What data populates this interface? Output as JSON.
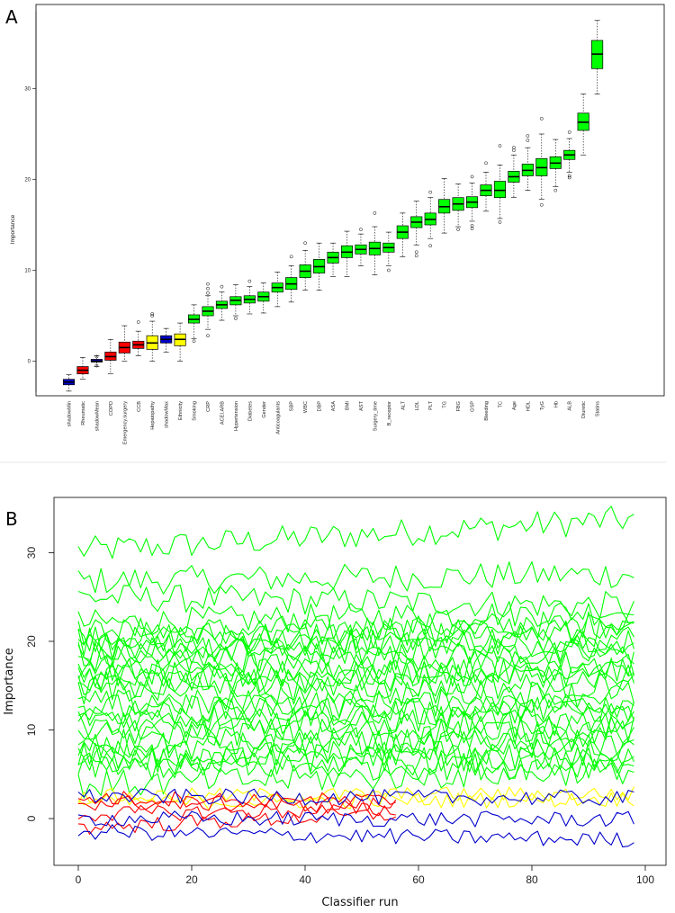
{
  "panels": {
    "a_label": "A",
    "b_label": "B"
  },
  "chart_data": [
    {
      "type": "box",
      "ylabel": "Importance",
      "ylim": [
        -3.4,
        38.5
      ],
      "yticks": [
        0,
        10,
        20,
        30
      ],
      "grid": false,
      "colors": {
        "shadow": "#0000cc",
        "rejected": "#ff0000",
        "tentative": "#ffff00",
        "confirmed": "#00ff00"
      },
      "boxes": [
        {
          "name": "shadowMin",
          "status": "shadow",
          "min": -3.3,
          "q1": -2.6,
          "median": -2.3,
          "q3": -2.0,
          "max": -1.5,
          "outliers": []
        },
        {
          "name": "Rheumatic",
          "status": "rejected",
          "min": -2.0,
          "q1": -1.4,
          "median": -1.0,
          "q3": -0.6,
          "max": 0.4,
          "outliers": []
        },
        {
          "name": "shadowMean",
          "status": "shadow",
          "min": -0.6,
          "q1": -0.1,
          "median": 0.0,
          "q3": 0.2,
          "max": 0.6,
          "outliers": [
            0.5,
            -0.5
          ]
        },
        {
          "name": "COPD",
          "status": "rejected",
          "min": -1.4,
          "q1": 0.1,
          "median": 0.5,
          "q3": 1.0,
          "max": 2.4,
          "outliers": []
        },
        {
          "name": "Emergency.surgery",
          "status": "rejected",
          "min": 0.0,
          "q1": 0.9,
          "median": 1.5,
          "q3": 2.1,
          "max": 3.9,
          "outliers": []
        },
        {
          "name": "CCB",
          "status": "rejected",
          "min": 0.6,
          "q1": 1.4,
          "median": 1.8,
          "q3": 2.2,
          "max": 3.3,
          "outliers": [
            4.3
          ]
        },
        {
          "name": "Hepatopathy",
          "status": "tentative",
          "min": 0.0,
          "q1": 1.3,
          "median": 2.0,
          "q3": 2.8,
          "max": 4.4,
          "outliers": [
            5.0,
            5.2
          ]
        },
        {
          "name": "shadowMax",
          "status": "shadow",
          "min": 1.0,
          "q1": 2.0,
          "median": 2.4,
          "q3": 2.8,
          "max": 3.6,
          "outliers": []
        },
        {
          "name": "Ethnicity",
          "status": "tentative",
          "min": 0.0,
          "q1": 1.7,
          "median": 2.4,
          "q3": 3.0,
          "max": 4.2,
          "outliers": []
        },
        {
          "name": "Smoking",
          "status": "confirmed",
          "min": 2.5,
          "q1": 4.2,
          "median": 4.6,
          "q3": 5.1,
          "max": 6.2,
          "outliers": [
            2.2
          ]
        },
        {
          "name": "CRP",
          "status": "confirmed",
          "min": 3.5,
          "q1": 5.0,
          "median": 5.5,
          "q3": 6.0,
          "max": 7.2,
          "outliers": [
            8.0,
            8.5,
            7.5,
            2.8
          ]
        },
        {
          "name": "ACEI.ARB",
          "status": "confirmed",
          "min": 4.5,
          "q1": 5.8,
          "median": 6.2,
          "q3": 6.6,
          "max": 7.6,
          "outliers": [
            8.2
          ]
        },
        {
          "name": "Hypertension",
          "status": "confirmed",
          "min": 5.0,
          "q1": 6.2,
          "median": 6.7,
          "q3": 7.1,
          "max": 8.4,
          "outliers": [
            4.7
          ]
        },
        {
          "name": "Diabetes",
          "status": "confirmed",
          "min": 5.2,
          "q1": 6.4,
          "median": 6.8,
          "q3": 7.2,
          "max": 8.2,
          "outliers": [
            8.8
          ]
        },
        {
          "name": "Gender",
          "status": "confirmed",
          "min": 5.3,
          "q1": 6.6,
          "median": 7.1,
          "q3": 7.6,
          "max": 8.6,
          "outliers": []
        },
        {
          "name": "Anticoagulants",
          "status": "confirmed",
          "min": 6.0,
          "q1": 7.6,
          "median": 8.1,
          "q3": 8.6,
          "max": 9.8,
          "outliers": []
        },
        {
          "name": "SBP",
          "status": "confirmed",
          "min": 6.5,
          "q1": 7.9,
          "median": 8.5,
          "q3": 9.2,
          "max": 10.5,
          "outliers": [
            11.5
          ]
        },
        {
          "name": "WBC",
          "status": "confirmed",
          "min": 7.8,
          "q1": 9.2,
          "median": 9.9,
          "q3": 10.6,
          "max": 12.2,
          "outliers": [
            13.0
          ]
        },
        {
          "name": "DBP",
          "status": "confirmed",
          "min": 7.8,
          "q1": 9.7,
          "median": 10.4,
          "q3": 11.2,
          "max": 13.0,
          "outliers": []
        },
        {
          "name": "ASA",
          "status": "confirmed",
          "min": 9.3,
          "q1": 10.8,
          "median": 11.4,
          "q3": 12.0,
          "max": 13.0,
          "outliers": []
        },
        {
          "name": "BMI",
          "status": "confirmed",
          "min": 9.3,
          "q1": 11.4,
          "median": 12.0,
          "q3": 12.7,
          "max": 14.3,
          "outliers": []
        },
        {
          "name": "AST",
          "status": "confirmed",
          "min": 10.5,
          "q1": 11.8,
          "median": 12.3,
          "q3": 12.8,
          "max": 14.0,
          "outliers": [
            14.5
          ]
        },
        {
          "name": "Surgery_time",
          "status": "confirmed",
          "min": 9.5,
          "q1": 11.7,
          "median": 12.4,
          "q3": 13.1,
          "max": 14.8,
          "outliers": [
            16.3
          ]
        },
        {
          "name": "B_receptor",
          "status": "confirmed",
          "min": 10.5,
          "q1": 12.0,
          "median": 12.5,
          "q3": 13.0,
          "max": 14.2,
          "outliers": [
            10.0
          ]
        },
        {
          "name": "ALT",
          "status": "confirmed",
          "min": 11.5,
          "q1": 13.5,
          "median": 14.2,
          "q3": 14.9,
          "max": 16.3,
          "outliers": []
        },
        {
          "name": "LDL",
          "status": "confirmed",
          "min": 12.8,
          "q1": 14.7,
          "median": 15.3,
          "q3": 15.9,
          "max": 17.6,
          "outliers": [
            11.6,
            12.0
          ]
        },
        {
          "name": "PLT",
          "status": "confirmed",
          "min": 13.5,
          "q1": 15.0,
          "median": 15.6,
          "q3": 16.3,
          "max": 18.0,
          "outliers": [
            12.7,
            18.6
          ]
        },
        {
          "name": "TG",
          "status": "confirmed",
          "min": 14.1,
          "q1": 16.3,
          "median": 17.0,
          "q3": 17.8,
          "max": 20.1,
          "outliers": []
        },
        {
          "name": "FBG",
          "status": "confirmed",
          "min": 14.8,
          "q1": 16.6,
          "median": 17.3,
          "q3": 18.0,
          "max": 19.5,
          "outliers": [
            14.5
          ]
        },
        {
          "name": "GSP",
          "status": "confirmed",
          "min": 15.4,
          "q1": 16.9,
          "median": 17.5,
          "q3": 18.1,
          "max": 19.6,
          "outliers": [
            14.6,
            14.9,
            20.3
          ]
        },
        {
          "name": "Bleeding",
          "status": "confirmed",
          "min": 16.5,
          "q1": 18.2,
          "median": 18.8,
          "q3": 19.4,
          "max": 20.8,
          "outliers": [
            21.8
          ]
        },
        {
          "name": "TC",
          "status": "confirmed",
          "min": 15.7,
          "q1": 18.0,
          "median": 18.8,
          "q3": 19.8,
          "max": 21.6,
          "outliers": [
            15.3,
            23.7
          ]
        },
        {
          "name": "Age",
          "status": "confirmed",
          "min": 18.0,
          "q1": 19.7,
          "median": 20.3,
          "q3": 20.9,
          "max": 22.7,
          "outliers": [
            23.2,
            23.5
          ]
        },
        {
          "name": "HDL",
          "status": "confirmed",
          "min": 18.8,
          "q1": 20.4,
          "median": 21.0,
          "q3": 21.7,
          "max": 23.5,
          "outliers": [
            24.3,
            24.8
          ]
        },
        {
          "name": "TyG",
          "status": "confirmed",
          "min": 17.8,
          "q1": 20.4,
          "median": 21.3,
          "q3": 22.3,
          "max": 25.0,
          "outliers": [
            17.2,
            26.7
          ]
        },
        {
          "name": "Hb",
          "status": "confirmed",
          "min": 19.2,
          "q1": 21.2,
          "median": 21.8,
          "q3": 22.5,
          "max": 24.4,
          "outliers": [
            18.8
          ]
        },
        {
          "name": "ALB",
          "status": "confirmed",
          "min": 20.8,
          "q1": 22.2,
          "median": 22.7,
          "q3": 23.2,
          "max": 24.5,
          "outliers": [
            20.2,
            20.4,
            25.2
          ]
        },
        {
          "name": "Diuretic",
          "status": "confirmed",
          "min": 22.7,
          "q1": 25.4,
          "median": 26.3,
          "q3": 27.3,
          "max": 29.4,
          "outliers": []
        },
        {
          "name": "Statins",
          "status": "confirmed",
          "min": 29.4,
          "q1": 32.2,
          "median": 33.8,
          "q3": 35.3,
          "max": 37.5,
          "outliers": []
        }
      ]
    },
    {
      "type": "line",
      "xlabel": "Classifier run",
      "ylabel": "Importance",
      "xlim": [
        0,
        100
      ],
      "ylim": [
        -5,
        37.5
      ],
      "xticks": [
        0,
        20,
        40,
        60,
        80,
        100
      ],
      "yticks": [
        0,
        10,
        20,
        30
      ],
      "n_runs": 99,
      "grid": false,
      "colors": {
        "shadow": "#0000cc",
        "rejected": "#ff0000",
        "tentative": "#ffff00",
        "confirmed": "#00ff00"
      },
      "series_summary": [
        {
          "group": "confirmed",
          "color": "#00ff00",
          "count": 30,
          "start_values": [
            30.2,
            26.8,
            25.0,
            22.0,
            21.0,
            20.5,
            20.0,
            19.5,
            19.0,
            18.8,
            18.0,
            17.0,
            16.5,
            16.0,
            15.5,
            15.0,
            14.5,
            13.0,
            12.5,
            12.0,
            11.5,
            10.5,
            9.7,
            8.5,
            8.0,
            7.2,
            6.8,
            6.5,
            5.8,
            3.8
          ],
          "end_values": [
            33.8,
            27.6,
            24.0,
            23.5,
            22.0,
            21.5,
            21.0,
            20.5,
            20.0,
            19.0,
            18.5,
            17.5,
            17.0,
            16.5,
            16.0,
            15.0,
            14.0,
            13.0,
            12.5,
            12.0,
            11.0,
            10.5,
            10.0,
            9.0,
            8.5,
            7.5,
            7.0,
            6.5,
            6.0,
            5.5
          ],
          "stop_run": 98
        },
        {
          "group": "rejected",
          "color": "#ff0000",
          "count": 4,
          "start_values": [
            2.3,
            1.8,
            0.5,
            -1.0
          ],
          "end_values": [
            2.0,
            1.5,
            1.0,
            0.5
          ],
          "stop_run": 56
        },
        {
          "group": "tentative",
          "color": "#ffff00",
          "count": 2,
          "start_values": [
            1.8,
            2.5
          ],
          "end_values": [
            2.2,
            2.8
          ],
          "stop_run": 98
        },
        {
          "group": "shadow",
          "color": "#0000cc",
          "count": 3,
          "start_values": [
            2.5,
            0.0,
            -1.5
          ],
          "end_values": [
            2.3,
            -0.1,
            -2.4
          ],
          "stop_run": 98
        }
      ]
    }
  ]
}
